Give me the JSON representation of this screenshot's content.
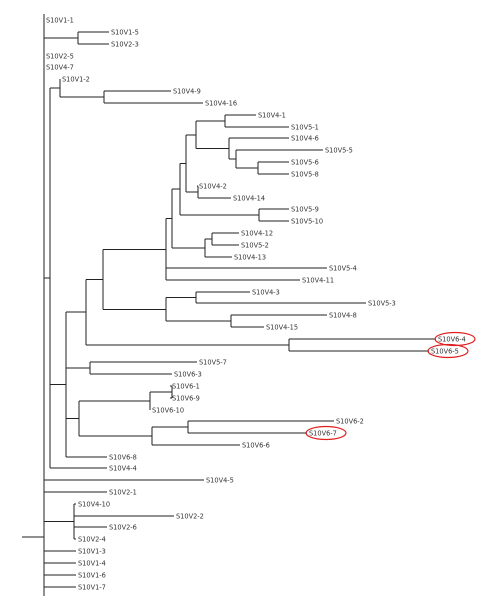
{
  "tree": {
    "labels": [
      "S10V1-1",
      "S10V1-5",
      "S10V2-3",
      "S10V2-5",
      "S10V4-7",
      "S10V1-2",
      "S10V4-9",
      "S10V4-16",
      "S10V4-1",
      "S10V5-1",
      "S10V4-6",
      "S10V5-5",
      "S10V5-6",
      "S10V5-8",
      "S10V4-2",
      "S10V4-14",
      "S10V5-9",
      "S10V5-10",
      "S10V4-12",
      "S10V5-2",
      "S10V4-13",
      "S10V5-4",
      "S10V4-11",
      "S10V4-3",
      "S10V5-3",
      "S10V4-8",
      "S10V4-15",
      "S10V6-4",
      "S10V6-5",
      "S10V5-7",
      "S10V6-3",
      "S10V6-1",
      "S10V6-9",
      "S10V6-10",
      "S10V6-2",
      "S10V6-7",
      "S10V6-6",
      "S10V6-8",
      "S10V4-4",
      "S10V4-5",
      "S10V2-1",
      "S10V4-10",
      "S10V2-2",
      "S10V2-6",
      "S10V2-4",
      "S10V1-3",
      "S10V1-4",
      "S10V1-6",
      "S10V1-7"
    ],
    "highlighted": [
      "S10V6-4",
      "S10V6-5",
      "S10V6-7"
    ],
    "highlight_color": "#e02020"
  }
}
